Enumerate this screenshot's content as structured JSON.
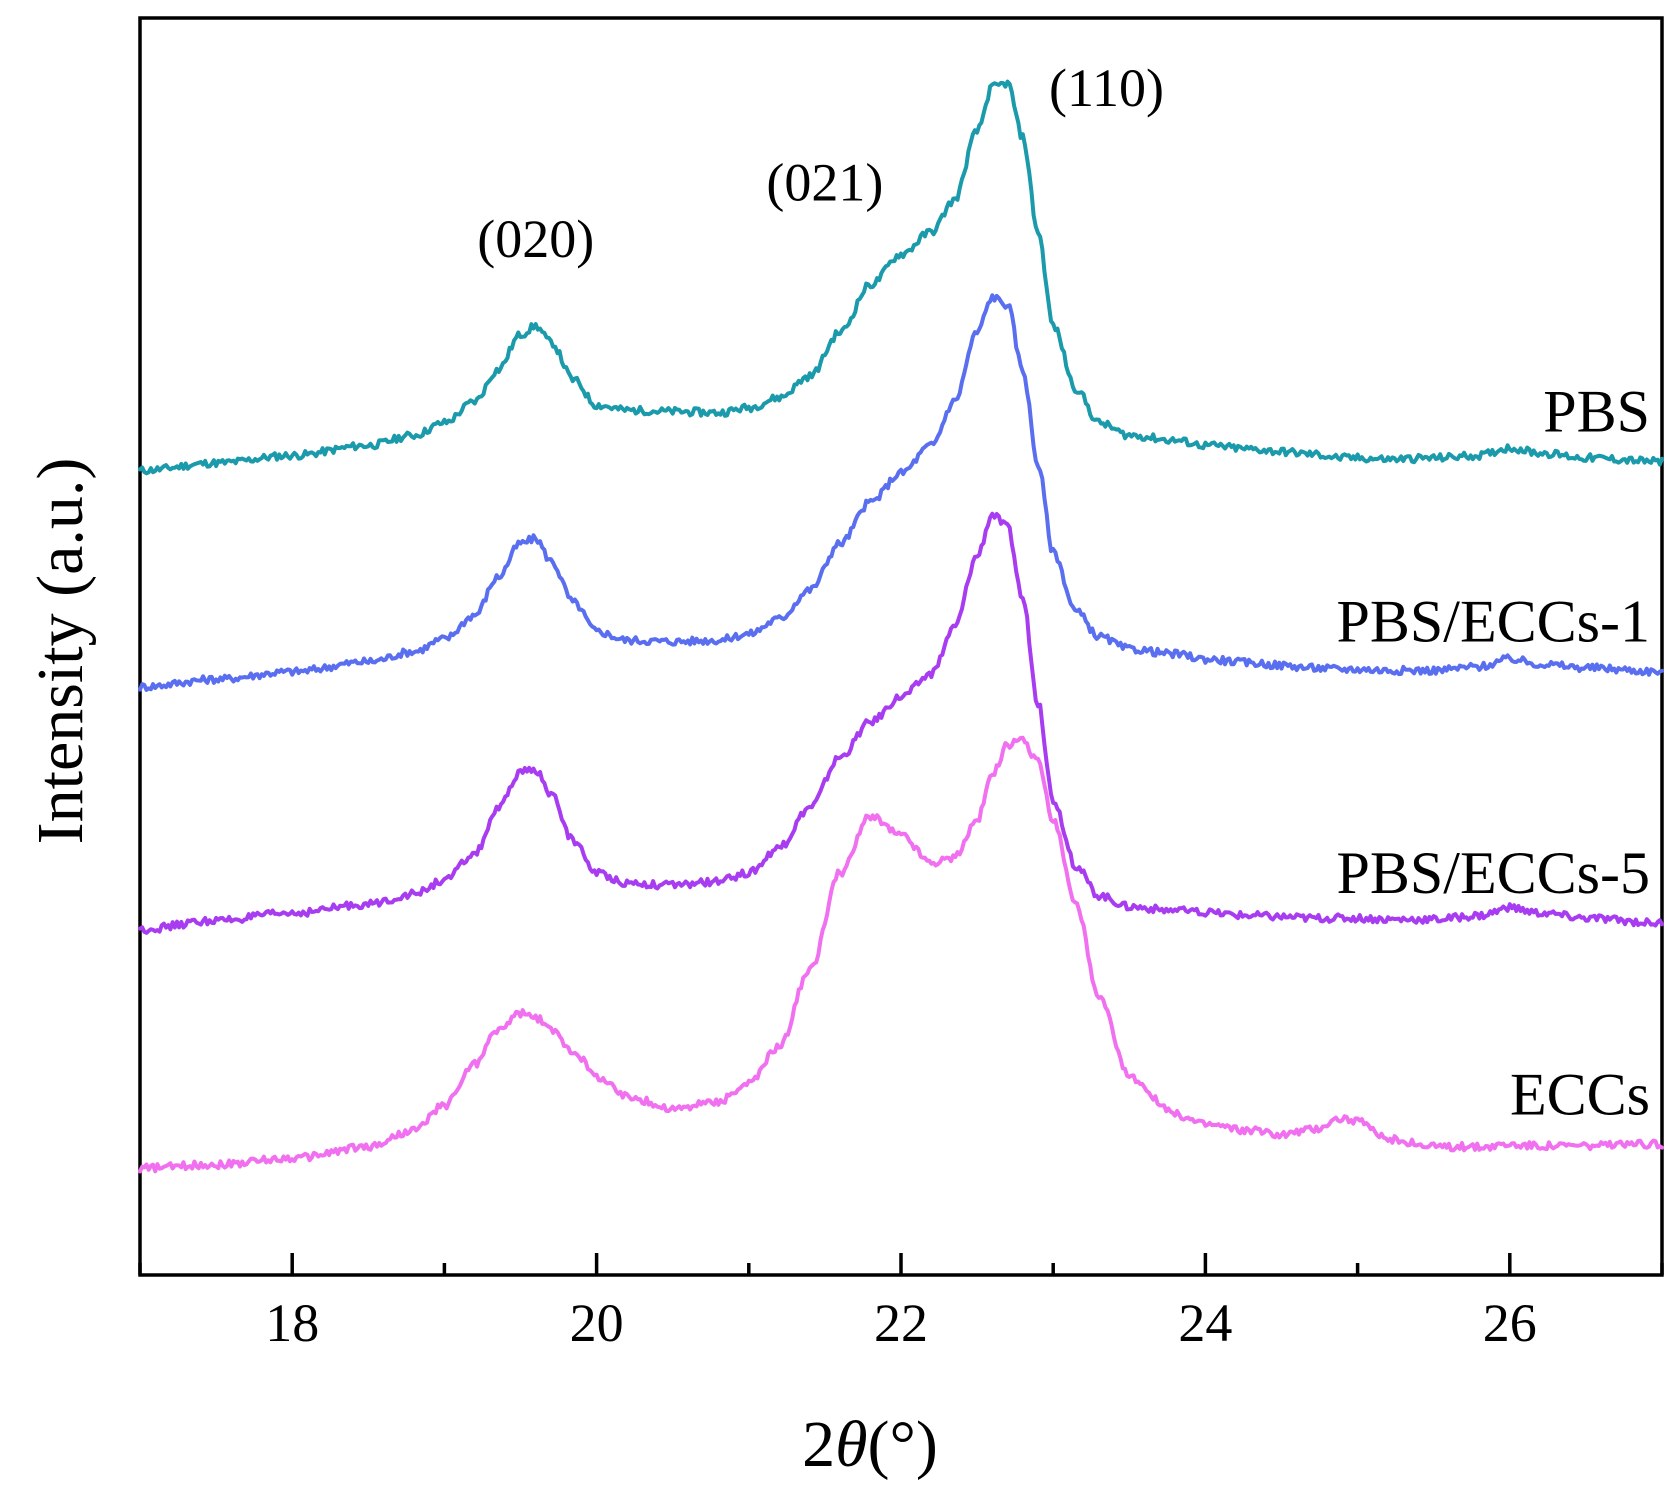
{
  "chart_data": {
    "type": "line",
    "title": "",
    "xlabel": "2θ(°)",
    "ylabel": "Intensity (a.u.)",
    "xlim": [
      17,
      27
    ],
    "ylim": [
      0,
      10
    ],
    "xticks": [
      18,
      20,
      22,
      24,
      26
    ],
    "xtick_labels": [
      "18",
      "20",
      "22",
      "24",
      "26"
    ],
    "grid": false,
    "legend": "inline labels at right end of each curve",
    "x": [
      17.0,
      17.5,
      18.0,
      18.5,
      18.8,
      19.0,
      19.2,
      19.35,
      19.5,
      19.6,
      19.7,
      19.85,
      20.0,
      20.2,
      20.5,
      20.8,
      21.0,
      21.2,
      21.4,
      21.6,
      21.8,
      22.0,
      22.2,
      22.35,
      22.5,
      22.6,
      22.7,
      22.8,
      22.9,
      23.0,
      23.15,
      23.3,
      23.5,
      23.8,
      24.0,
      24.3,
      24.5,
      24.7,
      24.9,
      25.0,
      25.2,
      25.5,
      25.8,
      26.0,
      26.2,
      26.5,
      27.0
    ],
    "series": [
      {
        "name": "PBS",
        "color": "#1a9aaa",
        "values": [
          6.4,
          6.46,
          6.52,
          6.6,
          6.68,
          6.78,
          6.95,
          7.2,
          7.48,
          7.55,
          7.42,
          7.12,
          6.92,
          6.88,
          6.87,
          6.86,
          6.9,
          6.98,
          7.15,
          7.5,
          7.88,
          8.12,
          8.3,
          8.55,
          9.1,
          9.45,
          9.48,
          9.05,
          8.3,
          7.55,
          7.05,
          6.78,
          6.68,
          6.64,
          6.6,
          6.57,
          6.55,
          6.53,
          6.5,
          6.5,
          6.49,
          6.5,
          6.52,
          6.58,
          6.54,
          6.5,
          6.47
        ]
      },
      {
        "name": "PBS/ECCs-1",
        "color": "#5a6ef0",
        "values": [
          4.68,
          4.74,
          4.8,
          4.88,
          4.96,
          5.06,
          5.25,
          5.55,
          5.82,
          5.86,
          5.68,
          5.35,
          5.12,
          5.05,
          5.04,
          5.05,
          5.1,
          5.22,
          5.45,
          5.82,
          6.15,
          6.38,
          6.6,
          6.95,
          7.5,
          7.78,
          7.72,
          7.2,
          6.45,
          5.75,
          5.28,
          5.08,
          4.98,
          4.94,
          4.9,
          4.87,
          4.85,
          4.83,
          4.82,
          4.82,
          4.81,
          4.81,
          4.84,
          4.9,
          4.86,
          4.83,
          4.8
        ]
      },
      {
        "name": "PBS/ECCs-5",
        "color": "#a83cf0",
        "values": [
          2.75,
          2.82,
          2.88,
          2.95,
          3.03,
          3.14,
          3.35,
          3.7,
          4.0,
          4.02,
          3.82,
          3.45,
          3.2,
          3.12,
          3.1,
          3.13,
          3.2,
          3.4,
          3.72,
          4.12,
          4.4,
          4.6,
          4.78,
          5.15,
          5.72,
          6.05,
          5.95,
          5.38,
          4.55,
          3.78,
          3.25,
          3.02,
          2.93,
          2.9,
          2.88,
          2.86,
          2.85,
          2.84,
          2.84,
          2.84,
          2.83,
          2.83,
          2.86,
          2.92,
          2.88,
          2.84,
          2.8
        ]
      },
      {
        "name": "ECCs",
        "color": "#f070f0",
        "values": [
          0.85,
          0.88,
          0.93,
          1.02,
          1.15,
          1.35,
          1.68,
          1.95,
          2.08,
          2.05,
          1.95,
          1.78,
          1.58,
          1.42,
          1.32,
          1.38,
          1.52,
          1.82,
          2.42,
          3.2,
          3.65,
          3.5,
          3.28,
          3.32,
          3.62,
          3.98,
          4.22,
          4.25,
          4.08,
          3.62,
          2.95,
          2.2,
          1.58,
          1.28,
          1.2,
          1.15,
          1.12,
          1.16,
          1.25,
          1.22,
          1.08,
          1.02,
          1.02,
          1.04,
          1.03,
          1.03,
          1.04
        ]
      }
    ],
    "series_labels": [
      "PBS",
      "PBS/ECCs-1",
      "PBS/ECCs-5",
      "ECCs"
    ],
    "annotations": [
      {
        "text": "(020)",
        "x": 19.6,
        "y": 8.1
      },
      {
        "text": "(021)",
        "x": 21.5,
        "y": 8.55
      },
      {
        "text": "(110)",
        "x": 23.35,
        "y": 9.3
      }
    ]
  }
}
